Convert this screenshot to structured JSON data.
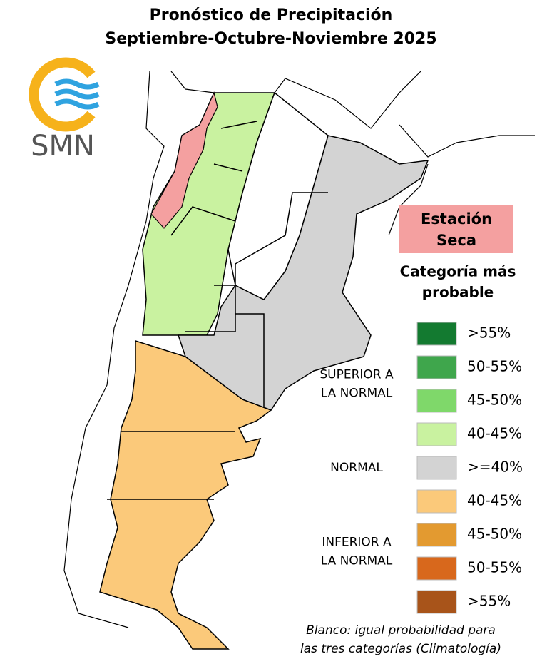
{
  "title": [
    "Pronóstico de Precipitación",
    "Septiembre-Octubre-Noviembre 2025"
  ],
  "logo": "SMN",
  "dry_season": [
    "Estación",
    "Seca"
  ],
  "legend": {
    "title": [
      "Categoría más",
      "probable"
    ],
    "groups": [
      {
        "label": [
          "SUPERIOR A",
          "LA NORMAL"
        ],
        "items": [
          {
            "label": ">55%",
            "color": "#137a30"
          },
          {
            "label": "50-55%",
            "color": "#3fa64c"
          },
          {
            "label": "45-50%",
            "color": "#7fd86a"
          },
          {
            "label": "40-45%",
            "color": "#c9f2a0"
          }
        ]
      },
      {
        "label": [
          "NORMAL"
        ],
        "items": [
          {
            "label": ">=40%",
            "color": "#d3d3d3"
          }
        ]
      },
      {
        "label": [
          "INFERIOR A",
          "LA NORMAL"
        ],
        "items": [
          {
            "label": "40-45%",
            "color": "#fbc97a"
          },
          {
            "label": "45-50%",
            "color": "#e39a30"
          },
          {
            "label": "50-55%",
            "color": "#d8681c"
          },
          {
            "label": ">55%",
            "color": "#a8541a"
          }
        ]
      }
    ]
  },
  "note": [
    "Blanco: igual probabilidad para",
    "las tres categorías (Climatología)"
  ]
}
